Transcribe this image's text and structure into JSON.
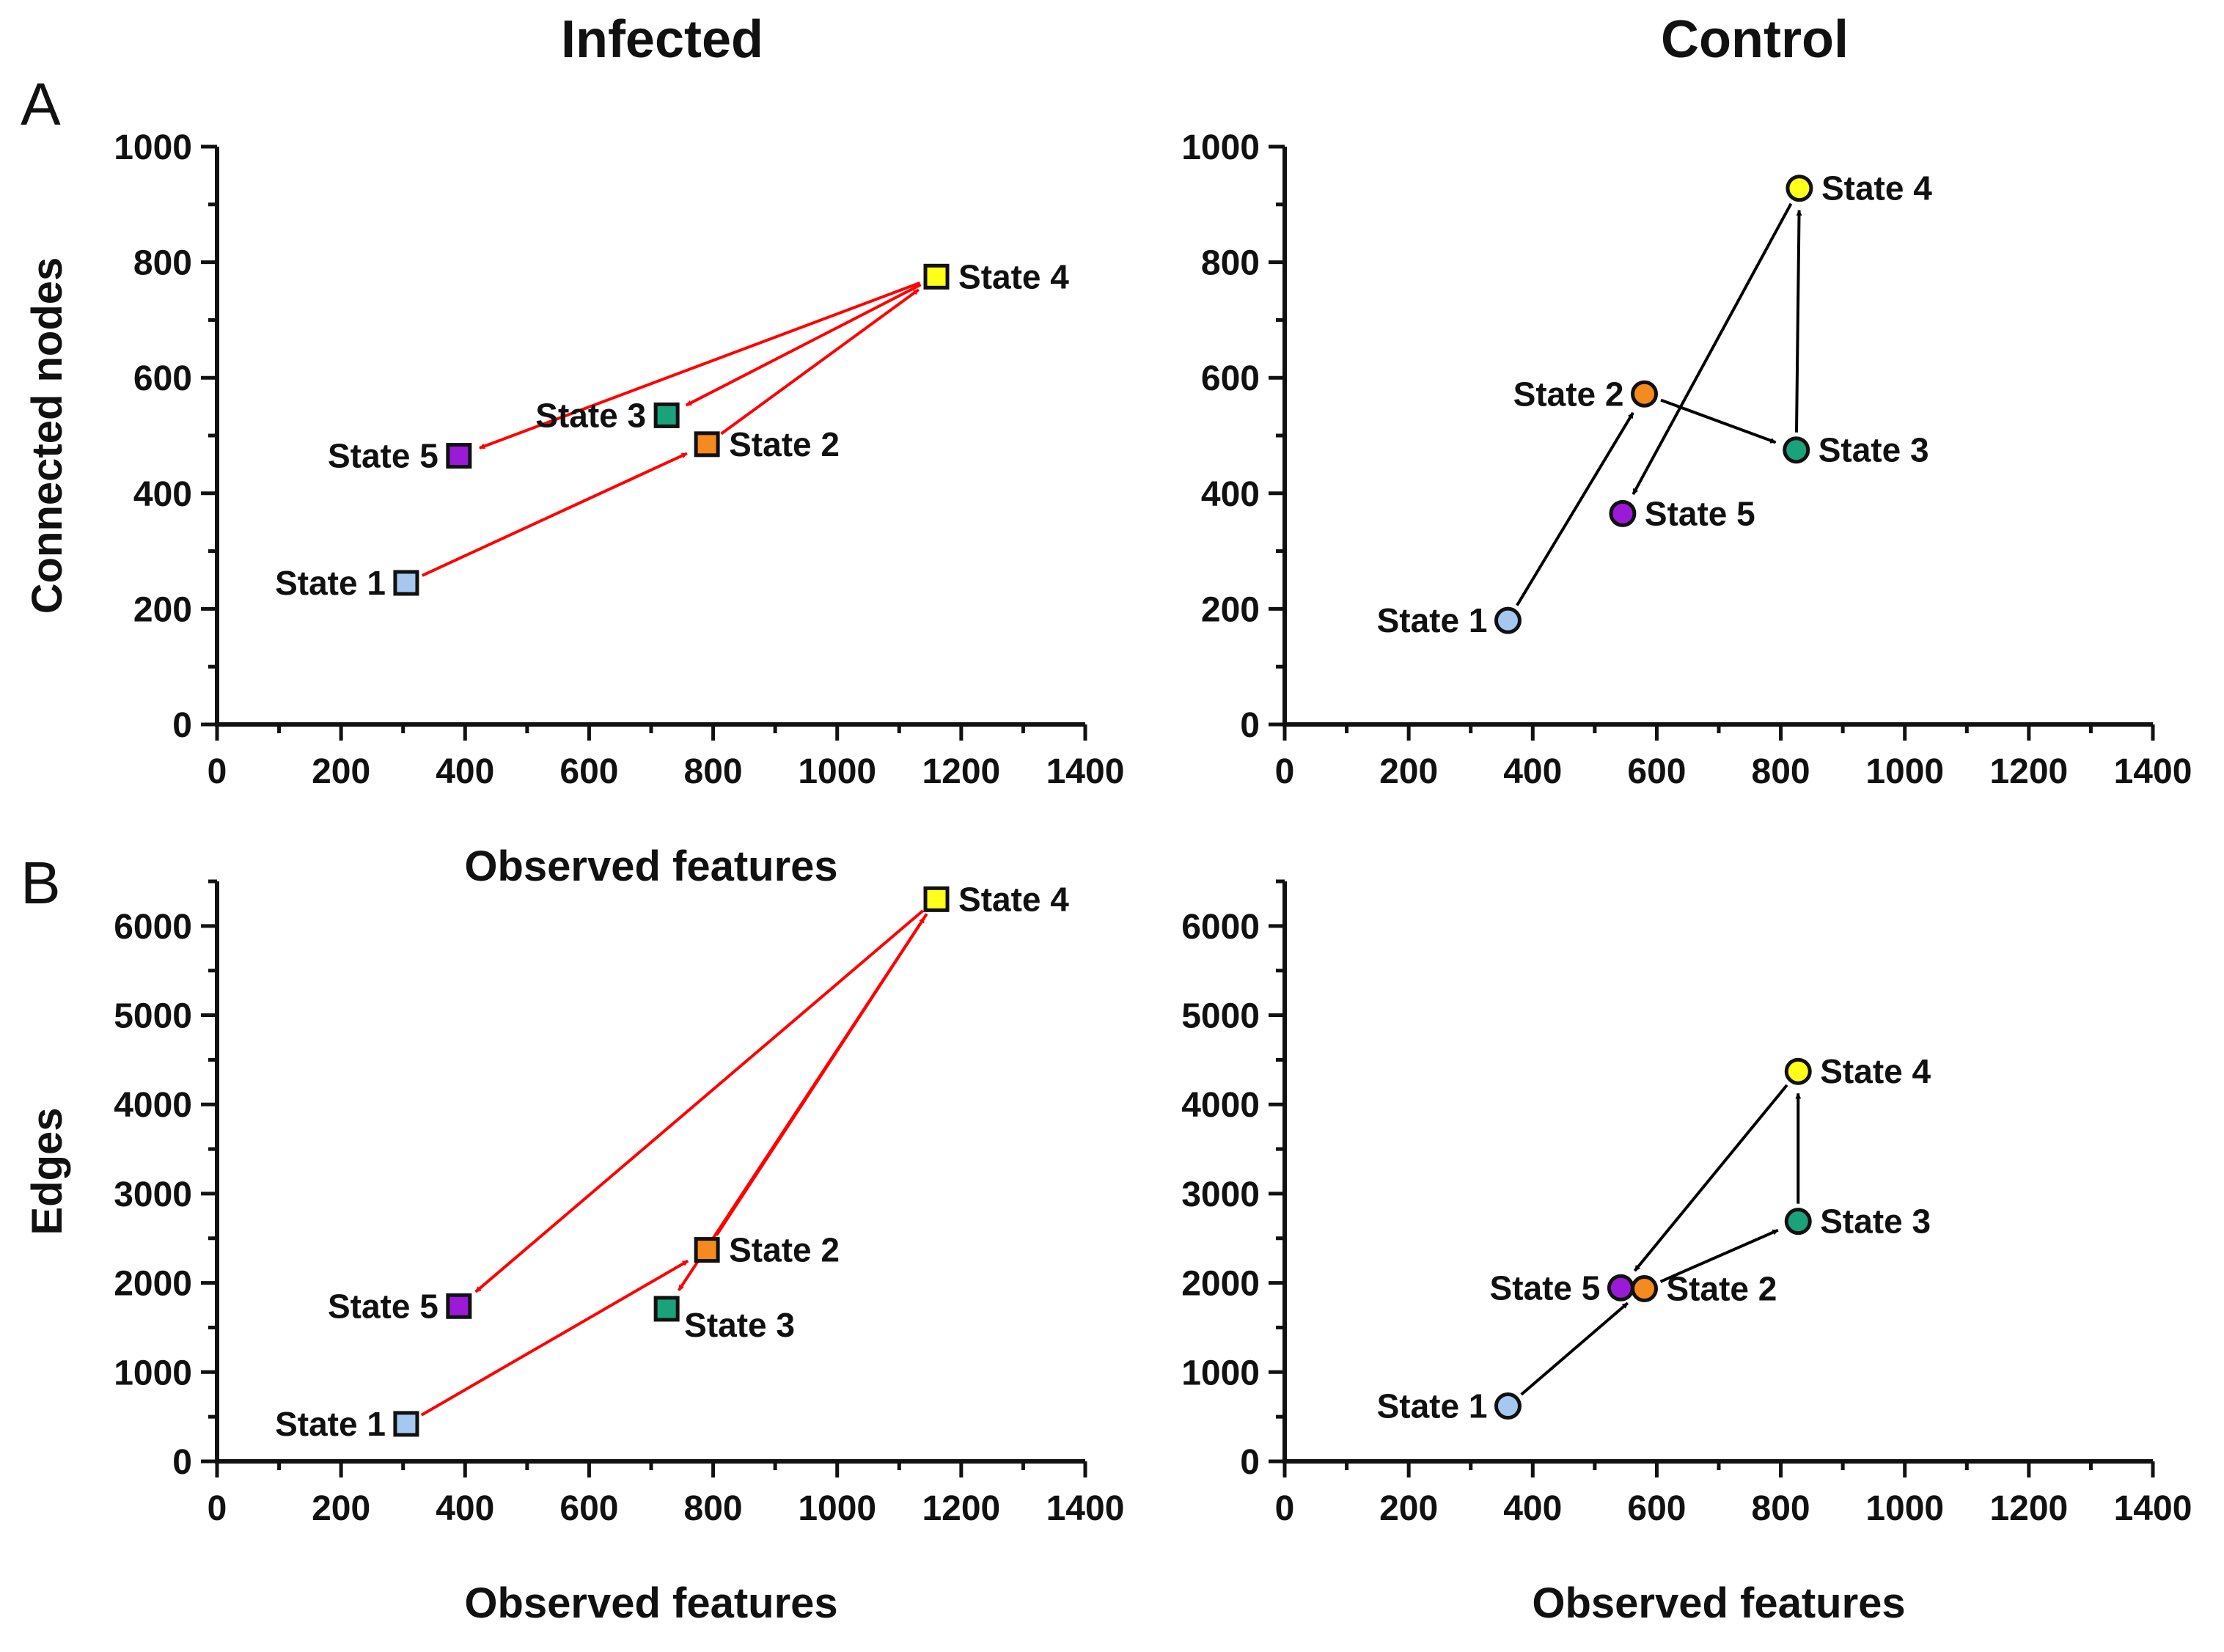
{
  "figure": {
    "column_titles": [
      "Infected",
      "Control"
    ],
    "panel_letters": [
      "A",
      "B"
    ]
  },
  "chart_data": [
    {
      "id": "A-infected",
      "type": "scatter",
      "panel": "A",
      "column": "Infected",
      "xlabel": "Observed features",
      "ylabel": "Connected nodes",
      "xlim": [
        0,
        1400
      ],
      "ylim": [
        0,
        1000
      ],
      "xticks": [
        0,
        200,
        400,
        600,
        800,
        1000,
        1200,
        1400
      ],
      "yticks": [
        0,
        200,
        400,
        600,
        800,
        1000
      ],
      "marker": "square",
      "arrow_color": "#ff0000",
      "points": [
        {
          "label": "State 1",
          "x": 305,
          "y": 245,
          "color": "#a6c8f0",
          "label_side": "left"
        },
        {
          "label": "State 2",
          "x": 790,
          "y": 485,
          "color": "#f58a1f",
          "label_side": "right"
        },
        {
          "label": "State 3",
          "x": 725,
          "y": 535,
          "color": "#1aa37a",
          "label_side": "left"
        },
        {
          "label": "State 4",
          "x": 1160,
          "y": 775,
          "color": "#ffff1a",
          "label_side": "right"
        },
        {
          "label": "State 5",
          "x": 390,
          "y": 465,
          "color": "#9a1ad8",
          "label_side": "left"
        }
      ],
      "transitions": [
        {
          "from": "State 1",
          "to": "State 2"
        },
        {
          "from": "State 2",
          "to": "State 4"
        },
        {
          "from": "State 4",
          "to": "State 3"
        },
        {
          "from": "State 4",
          "to": "State 5"
        }
      ]
    },
    {
      "id": "A-control",
      "type": "scatter",
      "panel": "A",
      "column": "Control",
      "xlabel": "",
      "ylabel": "",
      "xlim": [
        0,
        1400
      ],
      "ylim": [
        0,
        1000
      ],
      "xticks": [
        0,
        200,
        400,
        600,
        800,
        1000,
        1200,
        1400
      ],
      "yticks": [
        0,
        200,
        400,
        600,
        800,
        1000
      ],
      "marker": "circle",
      "arrow_color": "#000000",
      "points": [
        {
          "label": "State 1",
          "x": 360,
          "y": 180,
          "color": "#a6c8f0",
          "label_side": "left"
        },
        {
          "label": "State 2",
          "x": 580,
          "y": 572,
          "color": "#f58a1f",
          "label_side": "left"
        },
        {
          "label": "State 3",
          "x": 825,
          "y": 475,
          "color": "#1aa37a",
          "label_side": "right"
        },
        {
          "label": "State 4",
          "x": 830,
          "y": 928,
          "color": "#ffff1a",
          "label_side": "right"
        },
        {
          "label": "State 5",
          "x": 545,
          "y": 365,
          "color": "#9a1ad8",
          "label_side": "right"
        }
      ],
      "transitions": [
        {
          "from": "State 1",
          "to": "State 2"
        },
        {
          "from": "State 2",
          "to": "State 3"
        },
        {
          "from": "State 3",
          "to": "State 4"
        },
        {
          "from": "State 4",
          "to": "State 5"
        }
      ]
    },
    {
      "id": "B-infected",
      "type": "scatter",
      "panel": "B",
      "column": "Infected",
      "xlabel": "Observed features",
      "ylabel": "Edges",
      "xlim": [
        0,
        1400
      ],
      "ylim": [
        0,
        6500
      ],
      "xticks": [
        0,
        200,
        400,
        600,
        800,
        1000,
        1200,
        1400
      ],
      "yticks": [
        0,
        1000,
        2000,
        3000,
        4000,
        5000,
        6000
      ],
      "marker": "square",
      "arrow_color": "#ff0000",
      "points": [
        {
          "label": "State 1",
          "x": 305,
          "y": 420,
          "color": "#a6c8f0",
          "label_side": "left"
        },
        {
          "label": "State 2",
          "x": 790,
          "y": 2370,
          "color": "#f58a1f",
          "label_side": "right"
        },
        {
          "label": "State 3",
          "x": 725,
          "y": 1710,
          "color": "#1aa37a",
          "label_side": "right-below"
        },
        {
          "label": "State 4",
          "x": 1160,
          "y": 6300,
          "color": "#ffff1a",
          "label_side": "right"
        },
        {
          "label": "State 5",
          "x": 390,
          "y": 1740,
          "color": "#9a1ad8",
          "label_side": "left"
        }
      ],
      "transitions": [
        {
          "from": "State 1",
          "to": "State 2"
        },
        {
          "from": "State 2",
          "to": "State 4"
        },
        {
          "from": "State 4",
          "to": "State 3"
        },
        {
          "from": "State 4",
          "to": "State 5"
        }
      ]
    },
    {
      "id": "B-control",
      "type": "scatter",
      "panel": "B",
      "column": "Control",
      "xlabel": "Observed features",
      "ylabel": "",
      "xlim": [
        0,
        1400
      ],
      "ylim": [
        0,
        6500
      ],
      "xticks": [
        0,
        200,
        400,
        600,
        800,
        1000,
        1200,
        1400
      ],
      "yticks": [
        0,
        1000,
        2000,
        3000,
        4000,
        5000,
        6000
      ],
      "marker": "circle",
      "arrow_color": "#000000",
      "points": [
        {
          "label": "State 1",
          "x": 360,
          "y": 620,
          "color": "#a6c8f0",
          "label_side": "left"
        },
        {
          "label": "State 2",
          "x": 580,
          "y": 1935,
          "color": "#f58a1f",
          "label_side": "right"
        },
        {
          "label": "State 3",
          "x": 828,
          "y": 2690,
          "color": "#1aa37a",
          "label_side": "right"
        },
        {
          "label": "State 4",
          "x": 828,
          "y": 4370,
          "color": "#ffff1a",
          "label_side": "right"
        },
        {
          "label": "State 5",
          "x": 542,
          "y": 1945,
          "color": "#9a1ad8",
          "label_side": "left"
        }
      ],
      "transitions": [
        {
          "from": "State 1",
          "to": "State 2"
        },
        {
          "from": "State 2",
          "to": "State 3"
        },
        {
          "from": "State 3",
          "to": "State 4"
        },
        {
          "from": "State 4",
          "to": "State 5"
        }
      ]
    }
  ]
}
